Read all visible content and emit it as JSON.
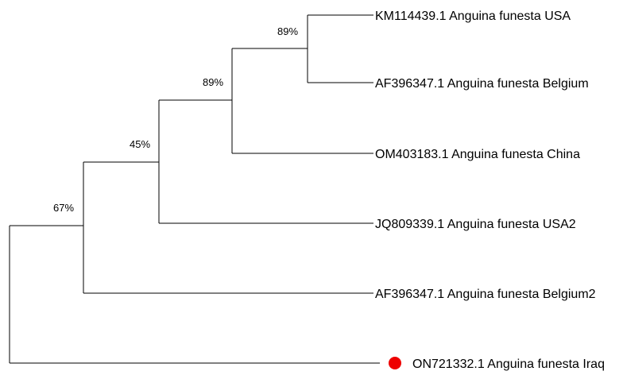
{
  "tree": {
    "highlight_color": "#ee0000",
    "leaves": {
      "km114439": "KM114439.1 Anguina funesta USA",
      "af396347": "AF396347.1 Anguina funesta Belgium",
      "om403183": "OM403183.1 Anguina funesta China",
      "jq809339": "JQ809339.1 Anguina funesta USA2",
      "af396347b": "AF396347.1 Anguina funesta Belgium2",
      "on721332": "ON721332.1 Anguina funesta Iraq"
    },
    "bootstrap": {
      "node_usa_belgium": "89%",
      "node_china": "89%",
      "node_usa2": "45%",
      "node_belgium2": "67%"
    }
  }
}
